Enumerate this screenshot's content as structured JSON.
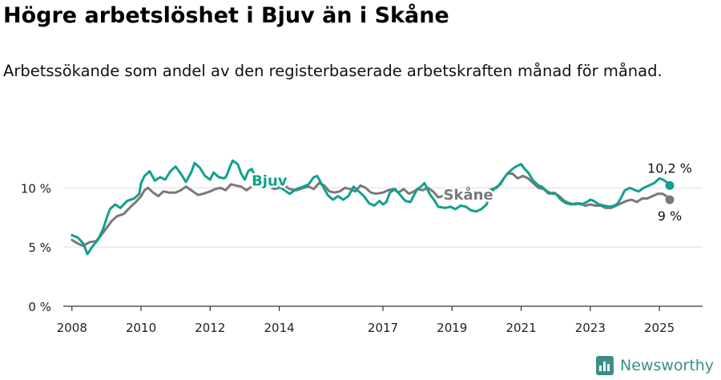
{
  "header": {
    "title": "Högre arbetslöshet i Bjuv än i Skåne",
    "subtitle": "Arbetssökande som andel av den registerbaserade arbetskraften månad för månad."
  },
  "brand": {
    "name": "Newsworthy"
  },
  "colors": {
    "bjuv": "#12a08f",
    "skane": "#7b777c",
    "grid": "#dcdcdc",
    "axis": "#333333"
  },
  "chart_data": {
    "type": "line",
    "title": "Högre arbetslöshet i Bjuv än i Skåne",
    "subtitle": "Arbetssökande som andel av den registerbaserade arbetskraften månad för månad.",
    "xlabel": "",
    "ylabel": "",
    "xlim": [
      2007.75,
      2026.25
    ],
    "ylim": [
      0,
      13
    ],
    "y_ticks": [
      {
        "value": 0,
        "label": "0 %"
      },
      {
        "value": 5,
        "label": "5 %"
      },
      {
        "value": 10,
        "label": "10 %"
      }
    ],
    "x_ticks": [
      {
        "value": 2008,
        "label": "2008"
      },
      {
        "value": 2010,
        "label": "2010"
      },
      {
        "value": 2012,
        "label": "2012"
      },
      {
        "value": 2014,
        "label": "2014"
      },
      {
        "value": 2017,
        "label": "2017"
      },
      {
        "value": 2019,
        "label": "2019"
      },
      {
        "value": 2021,
        "label": "2021"
      },
      {
        "value": 2023,
        "label": "2023"
      },
      {
        "value": 2025,
        "label": "2025"
      }
    ],
    "grid": true,
    "series": [
      {
        "name": "Bjuv",
        "color": "#12a08f",
        "points": [
          [
            2008.0,
            6.0
          ],
          [
            2008.17,
            5.8
          ],
          [
            2008.33,
            5.3
          ],
          [
            2008.45,
            4.4
          ],
          [
            2008.58,
            5.0
          ],
          [
            2008.75,
            5.6
          ],
          [
            2008.9,
            6.5
          ],
          [
            2009.0,
            7.4
          ],
          [
            2009.1,
            8.2
          ],
          [
            2009.25,
            8.6
          ],
          [
            2009.4,
            8.3
          ],
          [
            2009.6,
            8.9
          ],
          [
            2009.8,
            9.1
          ],
          [
            2009.95,
            9.5
          ],
          [
            2010.0,
            10.4
          ],
          [
            2010.1,
            11.0
          ],
          [
            2010.25,
            11.4
          ],
          [
            2010.4,
            10.6
          ],
          [
            2010.55,
            10.9
          ],
          [
            2010.7,
            10.7
          ],
          [
            2010.85,
            11.4
          ],
          [
            2011.0,
            11.8
          ],
          [
            2011.15,
            11.2
          ],
          [
            2011.3,
            10.5
          ],
          [
            2011.45,
            11.3
          ],
          [
            2011.55,
            12.1
          ],
          [
            2011.7,
            11.7
          ],
          [
            2011.85,
            11.0
          ],
          [
            2012.0,
            10.7
          ],
          [
            2012.1,
            11.3
          ],
          [
            2012.25,
            10.9
          ],
          [
            2012.4,
            10.8
          ],
          [
            2012.45,
            10.9
          ],
          [
            2012.5,
            11.2
          ],
          [
            2012.55,
            11.6
          ],
          [
            2012.65,
            12.3
          ],
          [
            2012.8,
            12.0
          ],
          [
            2012.9,
            11.2
          ],
          [
            2013.0,
            10.7
          ],
          [
            2013.1,
            11.4
          ],
          [
            2013.2,
            11.6
          ],
          [
            2013.3,
            11.0
          ],
          [
            2013.4,
            10.6
          ],
          [
            2013.55,
            10.9
          ],
          [
            2013.7,
            10.4
          ],
          [
            2013.85,
            10.1
          ],
          [
            2014.0,
            10.1
          ],
          [
            2014.15,
            9.8
          ],
          [
            2014.3,
            9.5
          ],
          [
            2014.5,
            9.9
          ],
          [
            2014.7,
            10.1
          ],
          [
            2014.85,
            10.3
          ],
          [
            2015.0,
            10.9
          ],
          [
            2015.1,
            11.0
          ],
          [
            2015.25,
            10.2
          ],
          [
            2015.4,
            9.4
          ],
          [
            2015.55,
            9.0
          ],
          [
            2015.7,
            9.3
          ],
          [
            2015.85,
            9.0
          ],
          [
            2016.0,
            9.3
          ],
          [
            2016.15,
            10.1
          ],
          [
            2016.3,
            9.7
          ],
          [
            2016.45,
            9.3
          ],
          [
            2016.6,
            8.7
          ],
          [
            2016.75,
            8.5
          ],
          [
            2016.9,
            8.9
          ],
          [
            2017.0,
            8.6
          ],
          [
            2017.1,
            8.8
          ],
          [
            2017.2,
            9.6
          ],
          [
            2017.35,
            9.9
          ],
          [
            2017.5,
            9.4
          ],
          [
            2017.65,
            8.9
          ],
          [
            2017.8,
            8.8
          ],
          [
            2017.9,
            9.4
          ],
          [
            2018.0,
            9.9
          ],
          [
            2018.1,
            10.1
          ],
          [
            2018.2,
            10.4
          ],
          [
            2018.35,
            9.5
          ],
          [
            2018.5,
            8.9
          ],
          [
            2018.6,
            8.4
          ],
          [
            2018.8,
            8.3
          ],
          [
            2018.95,
            8.4
          ],
          [
            2019.1,
            8.2
          ],
          [
            2019.25,
            8.5
          ],
          [
            2019.4,
            8.4
          ],
          [
            2019.55,
            8.1
          ],
          [
            2019.7,
            8.0
          ],
          [
            2019.85,
            8.2
          ],
          [
            2020.0,
            8.6
          ],
          [
            2020.1,
            9.5
          ],
          [
            2020.25,
            10.0
          ],
          [
            2020.4,
            10.3
          ],
          [
            2020.5,
            10.8
          ],
          [
            2020.6,
            11.2
          ],
          [
            2020.75,
            11.6
          ],
          [
            2020.85,
            11.8
          ],
          [
            2021.0,
            12.0
          ],
          [
            2021.1,
            11.6
          ],
          [
            2021.2,
            11.3
          ],
          [
            2021.35,
            10.6
          ],
          [
            2021.5,
            10.2
          ],
          [
            2021.6,
            10.1
          ],
          [
            2021.75,
            9.7
          ],
          [
            2021.9,
            9.5
          ],
          [
            2022.0,
            9.5
          ],
          [
            2022.15,
            9.0
          ],
          [
            2022.3,
            8.7
          ],
          [
            2022.45,
            8.6
          ],
          [
            2022.6,
            8.7
          ],
          [
            2022.75,
            8.6
          ],
          [
            2022.9,
            8.8
          ],
          [
            2023.0,
            9.0
          ],
          [
            2023.1,
            8.9
          ],
          [
            2023.25,
            8.6
          ],
          [
            2023.4,
            8.5
          ],
          [
            2023.55,
            8.4
          ],
          [
            2023.7,
            8.5
          ],
          [
            2023.8,
            8.7
          ],
          [
            2023.9,
            9.2
          ],
          [
            2024.0,
            9.8
          ],
          [
            2024.15,
            10.0
          ],
          [
            2024.3,
            9.8
          ],
          [
            2024.4,
            9.7
          ],
          [
            2024.55,
            10.0
          ],
          [
            2024.7,
            10.2
          ],
          [
            2024.85,
            10.4
          ],
          [
            2025.0,
            10.8
          ],
          [
            2025.1,
            10.7
          ],
          [
            2025.2,
            10.5
          ],
          [
            2025.3,
            10.2
          ]
        ],
        "end_label": "10,2 %"
      },
      {
        "name": "Skåne",
        "color": "#7b777c",
        "points": [
          [
            2008.0,
            5.6
          ],
          [
            2008.17,
            5.3
          ],
          [
            2008.33,
            5.1
          ],
          [
            2008.5,
            5.4
          ],
          [
            2008.7,
            5.5
          ],
          [
            2008.85,
            6.0
          ],
          [
            2009.0,
            6.6
          ],
          [
            2009.15,
            7.2
          ],
          [
            2009.3,
            7.6
          ],
          [
            2009.5,
            7.8
          ],
          [
            2009.7,
            8.4
          ],
          [
            2009.85,
            8.8
          ],
          [
            2010.0,
            9.3
          ],
          [
            2010.1,
            9.8
          ],
          [
            2010.2,
            10.0
          ],
          [
            2010.35,
            9.6
          ],
          [
            2010.5,
            9.3
          ],
          [
            2010.65,
            9.7
          ],
          [
            2010.8,
            9.6
          ],
          [
            2011.0,
            9.6
          ],
          [
            2011.15,
            9.8
          ],
          [
            2011.3,
            10.1
          ],
          [
            2011.5,
            9.7
          ],
          [
            2011.65,
            9.4
          ],
          [
            2011.8,
            9.5
          ],
          [
            2012.0,
            9.7
          ],
          [
            2012.15,
            9.9
          ],
          [
            2012.3,
            10.0
          ],
          [
            2012.45,
            9.8
          ],
          [
            2012.6,
            10.3
          ],
          [
            2012.75,
            10.2
          ],
          [
            2012.9,
            10.1
          ],
          [
            2013.05,
            9.8
          ],
          [
            2013.2,
            10.1
          ],
          [
            2013.35,
            10.4
          ],
          [
            2013.5,
            10.5
          ],
          [
            2013.7,
            10.2
          ],
          [
            2013.85,
            9.9
          ],
          [
            2014.0,
            10.0
          ],
          [
            2014.15,
            10.2
          ],
          [
            2014.3,
            9.9
          ],
          [
            2014.5,
            9.8
          ],
          [
            2014.7,
            10.0
          ],
          [
            2014.85,
            10.1
          ],
          [
            2015.0,
            9.9
          ],
          [
            2015.15,
            10.4
          ],
          [
            2015.3,
            10.2
          ],
          [
            2015.45,
            9.7
          ],
          [
            2015.6,
            9.6
          ],
          [
            2015.75,
            9.7
          ],
          [
            2015.9,
            10.0
          ],
          [
            2016.05,
            9.9
          ],
          [
            2016.2,
            9.7
          ],
          [
            2016.35,
            10.2
          ],
          [
            2016.5,
            10.0
          ],
          [
            2016.65,
            9.6
          ],
          [
            2016.8,
            9.5
          ],
          [
            2017.0,
            9.6
          ],
          [
            2017.15,
            9.8
          ],
          [
            2017.3,
            9.9
          ],
          [
            2017.45,
            9.6
          ],
          [
            2017.6,
            9.9
          ],
          [
            2017.75,
            9.5
          ],
          [
            2017.9,
            9.7
          ],
          [
            2018.0,
            9.9
          ],
          [
            2018.15,
            9.8
          ],
          [
            2018.3,
            10.0
          ],
          [
            2018.45,
            9.7
          ],
          [
            2018.6,
            9.2
          ],
          [
            2018.75,
            9.3
          ],
          [
            2018.9,
            9.3
          ],
          [
            2019.05,
            9.1
          ],
          [
            2019.2,
            9.3
          ],
          [
            2019.4,
            9.4
          ],
          [
            2019.55,
            9.0
          ],
          [
            2019.7,
            9.3
          ],
          [
            2019.85,
            9.5
          ],
          [
            2020.0,
            9.6
          ],
          [
            2020.15,
            9.9
          ],
          [
            2020.3,
            10.0
          ],
          [
            2020.45,
            10.6
          ],
          [
            2020.6,
            11.2
          ],
          [
            2020.75,
            11.2
          ],
          [
            2020.9,
            10.8
          ],
          [
            2021.05,
            11.0
          ],
          [
            2021.2,
            10.8
          ],
          [
            2021.35,
            10.4
          ],
          [
            2021.5,
            10.0
          ],
          [
            2021.65,
            9.9
          ],
          [
            2021.8,
            9.5
          ],
          [
            2021.95,
            9.6
          ],
          [
            2022.1,
            9.3
          ],
          [
            2022.25,
            8.9
          ],
          [
            2022.4,
            8.7
          ],
          [
            2022.55,
            8.6
          ],
          [
            2022.7,
            8.7
          ],
          [
            2022.85,
            8.5
          ],
          [
            2023.0,
            8.6
          ],
          [
            2023.15,
            8.5
          ],
          [
            2023.3,
            8.5
          ],
          [
            2023.45,
            8.3
          ],
          [
            2023.6,
            8.3
          ],
          [
            2023.75,
            8.5
          ],
          [
            2023.9,
            8.7
          ],
          [
            2024.05,
            8.9
          ],
          [
            2024.2,
            9.0
          ],
          [
            2024.35,
            8.8
          ],
          [
            2024.5,
            9.1
          ],
          [
            2024.65,
            9.1
          ],
          [
            2024.8,
            9.3
          ],
          [
            2024.95,
            9.5
          ],
          [
            2025.1,
            9.5
          ],
          [
            2025.2,
            9.3
          ],
          [
            2025.3,
            9.0
          ]
        ],
        "end_label": "9 %"
      }
    ]
  }
}
